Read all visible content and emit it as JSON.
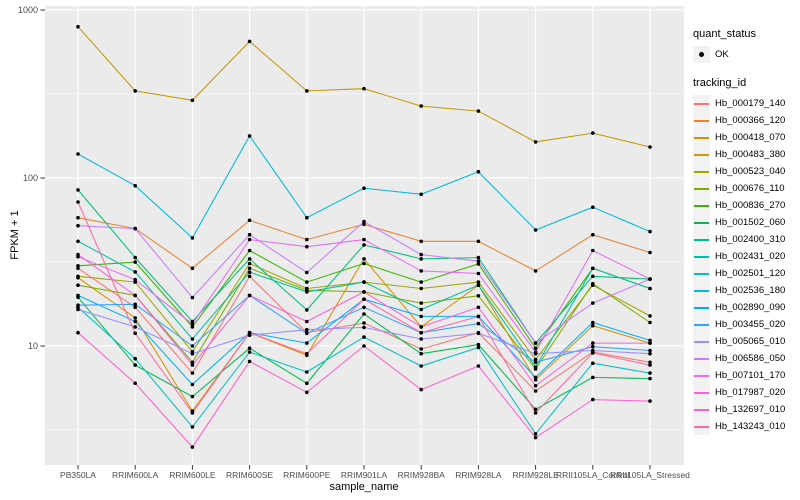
{
  "figure": {
    "background": "#FFFFFF",
    "panel_background": "#EBEBEB",
    "grid_color": "#FFFFFF",
    "axis_text_color": "#4D4D4D",
    "tick_mark_color": "#333333",
    "point_color": "#000000"
  },
  "legend": {
    "quant_status": {
      "title": "quant_status",
      "items": [
        {
          "label": "OK",
          "symbol": "point",
          "color": "#000000"
        }
      ]
    },
    "tracking_id": {
      "title": "tracking_id"
    }
  },
  "chart_data": {
    "type": "line",
    "title": "",
    "xlabel": "sample_name",
    "ylabel": "FPKM + 1",
    "yscale": "log10",
    "ylim": [
      1.9,
      1060
    ],
    "yticks": [
      10,
      100,
      1000
    ],
    "yminor": [
      3.1623,
      31.623,
      316.23
    ],
    "grid": true,
    "legend_position": "right",
    "marker": "point",
    "categories": [
      "PB350LA",
      "RRIM600LA",
      "RRIM600LE",
      "RRIM600SE",
      "RRIM600PE",
      "RRIM901LA",
      "RRIM928BA",
      "RRIM928LA",
      "RRIM928LE",
      "RRII105LA_Control",
      "RRII105LA_Stressed"
    ],
    "series": [
      {
        "name": "Hb_000179_140",
        "color": "#F8766D",
        "quant_status": "OK",
        "values": [
          29,
          17,
          6.9,
          26,
          12,
          13.7,
          9.6,
          12,
          5.4,
          9.2,
          8.0
        ]
      },
      {
        "name": "Hb_000366_120",
        "color": "#EA8331",
        "quant_status": "OK",
        "values": [
          58,
          50,
          29,
          56,
          43,
          53,
          42,
          42,
          28,
          46,
          36
        ]
      },
      {
        "name": "Hb_000418_070",
        "color": "#D89000",
        "quant_status": "OK",
        "values": [
          25.5,
          14.7,
          4.1,
          12,
          8.8,
          33,
          13,
          23,
          6.3,
          13.2,
          10.4
        ]
      },
      {
        "name": "Hb_000483_380",
        "color": "#C49A00",
        "quant_status": "OK",
        "values": [
          795,
          330,
          290,
          650,
          330,
          340,
          268,
          250,
          164,
          185,
          153
        ]
      },
      {
        "name": "Hb_000523_040",
        "color": "#A3A500",
        "quant_status": "OK",
        "values": [
          26,
          24,
          9.25,
          31,
          22,
          24,
          22,
          24,
          8.3,
          23,
          15.1
        ]
      },
      {
        "name": "Hb_000676_110",
        "color": "#7CAE00",
        "quant_status": "OK",
        "values": [
          23,
          20,
          8.0,
          29,
          21.5,
          21,
          18,
          19.9,
          7.3,
          23.5,
          13.8
        ]
      },
      {
        "name": "Hb_000836_270",
        "color": "#39B600",
        "quant_status": "OK",
        "values": [
          30,
          31.6,
          13,
          37,
          24,
          31,
          24,
          30.8,
          9.7,
          29,
          22
        ]
      },
      {
        "name": "Hb_001502_060",
        "color": "#00BB4E",
        "quant_status": "OK",
        "values": [
          19.5,
          7.7,
          5.0,
          9.7,
          6.0,
          15.5,
          9.0,
          10.2,
          4.2,
          6.5,
          6.4
        ]
      },
      {
        "name": "Hb_002400_310",
        "color": "#00BF7D",
        "quant_status": "OK",
        "values": [
          85,
          33.6,
          14,
          33,
          16.4,
          40,
          33,
          33.6,
          10.4,
          26,
          25
        ]
      },
      {
        "name": "Hb_002431_020",
        "color": "#00C1A3",
        "quant_status": "OK",
        "values": [
          42,
          27.6,
          11,
          27.5,
          21,
          24,
          16.5,
          23,
          7.5,
          29,
          22
        ]
      },
      {
        "name": "Hb_002501_120",
        "color": "#00BFC4",
        "quant_status": "OK",
        "values": [
          17,
          8.4,
          3.3,
          9.2,
          7.0,
          11.3,
          7.6,
          9.8,
          3.0,
          7.9,
          6.9
        ]
      },
      {
        "name": "Hb_002536_180",
        "color": "#00BAE0",
        "quant_status": "OK",
        "values": [
          139,
          90,
          44,
          178,
          58,
          87,
          80,
          109,
          49,
          67,
          48
        ]
      },
      {
        "name": "Hb_002890_090",
        "color": "#00B0F6",
        "quant_status": "OK",
        "values": [
          20,
          14,
          5.9,
          12,
          10.4,
          19,
          15,
          15,
          6.5,
          13.8,
          10.8
        ]
      },
      {
        "name": "Hb_003455_020",
        "color": "#35A2FF",
        "quant_status": "OK",
        "values": [
          17.5,
          17.7,
          10,
          20,
          11.9,
          17,
          12,
          13.6,
          8.0,
          9.9,
          9.4
        ]
      },
      {
        "name": "Hb_005065_010",
        "color": "#9590FF",
        "quant_status": "OK",
        "values": [
          16.5,
          13,
          9.0,
          11.6,
          12.5,
          12.9,
          11,
          11.9,
          9.0,
          9.4,
          9.0
        ]
      },
      {
        "name": "Hb_006586_050",
        "color": "#C77CFF",
        "quant_status": "OK",
        "values": [
          52,
          50,
          19.4,
          46,
          27.4,
          55,
          35,
          32,
          10.4,
          18,
          25
        ]
      },
      {
        "name": "Hb_007101_170",
        "color": "#E76BF3",
        "quant_status": "OK",
        "values": [
          34,
          24.8,
          13.5,
          43,
          39,
          43,
          28,
          27,
          9.2,
          37,
          25
        ]
      },
      {
        "name": "Hb_017987_020",
        "color": "#FA62DB",
        "quant_status": "OK",
        "values": [
          35,
          20,
          7.7,
          20,
          14,
          21,
          13,
          17,
          5.8,
          10.4,
          10.4
        ]
      },
      {
        "name": "Hb_132697_010",
        "color": "#FF61CC",
        "quant_status": "OK",
        "values": [
          12,
          6.0,
          2.5,
          8.1,
          5.3,
          10,
          5.5,
          7.6,
          2.85,
          4.8,
          4.7
        ]
      },
      {
        "name": "Hb_143243_010",
        "color": "#FF67A4",
        "quant_status": "OK",
        "values": [
          72,
          11.9,
          4.0,
          12,
          9.0,
          19,
          12,
          15,
          4.0,
          9.1,
          7.7
        ]
      }
    ]
  }
}
